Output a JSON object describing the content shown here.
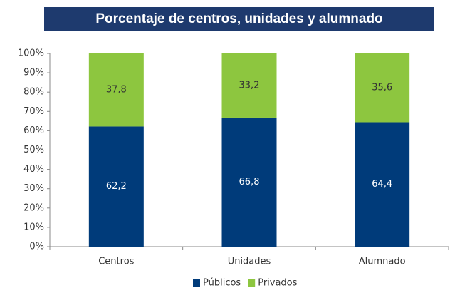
{
  "chart_data": {
    "type": "stacked_bar",
    "title": "Porcentaje de centros, unidades y alumnado",
    "categories": [
      "Centros",
      "Unidades",
      "Alumnado"
    ],
    "series": [
      {
        "name": "Públicos",
        "color": "#003b7a",
        "values": [
          62.2,
          66.8,
          64.4
        ],
        "value_labels": [
          "62,2",
          "66,8",
          "64,4"
        ]
      },
      {
        "name": "Privados",
        "color": "#8dc63f",
        "values": [
          37.8,
          33.2,
          35.6
        ],
        "value_labels": [
          "37,8",
          "33,2",
          "35,6"
        ]
      }
    ],
    "ylim": [
      0,
      100
    ],
    "yticks": [
      {
        "value": 0,
        "label": "0%"
      },
      {
        "value": 10,
        "label": "10%"
      },
      {
        "value": 20,
        "label": "20%"
      },
      {
        "value": 30,
        "label": "30%"
      },
      {
        "value": 40,
        "label": "40%"
      },
      {
        "value": 50,
        "label": "50%"
      },
      {
        "value": 60,
        "label": "60%"
      },
      {
        "value": 70,
        "label": "70%"
      },
      {
        "value": 80,
        "label": "80%"
      },
      {
        "value": 90,
        "label": "90%"
      },
      {
        "value": 100,
        "label": "100%"
      }
    ],
    "legend": "bottom"
  }
}
